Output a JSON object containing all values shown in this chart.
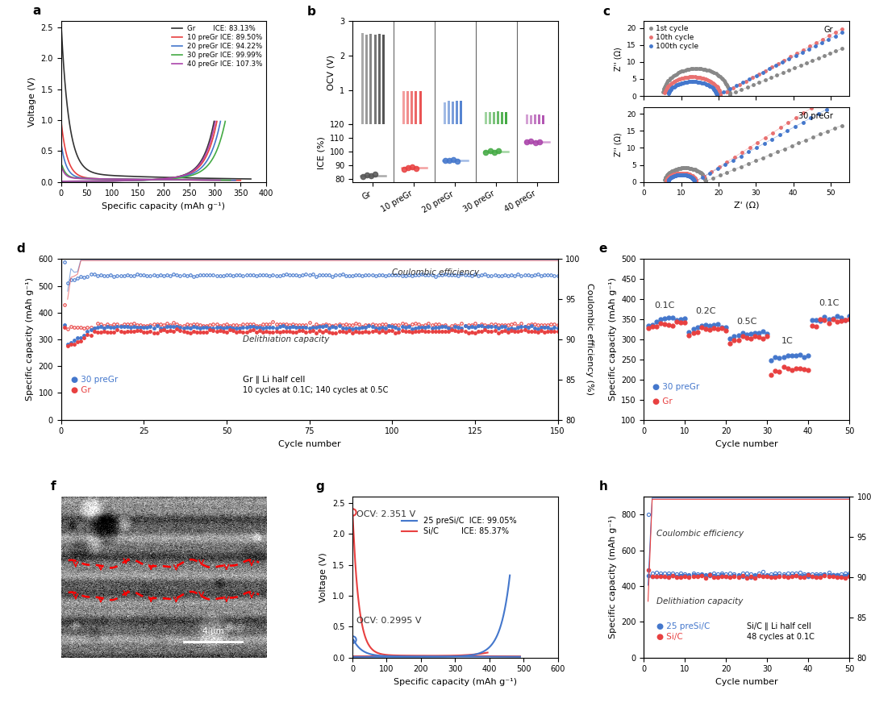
{
  "panel_a": {
    "xlabel": "Specific capacity (mAh g⁻¹)",
    "ylabel": "Voltage (V)",
    "xlim": [
      0,
      400
    ],
    "ylim": [
      0,
      2.6
    ],
    "lines": [
      {
        "label": "Gr        ICE: 83.13%",
        "color": "#333333"
      },
      {
        "label": "10 preGr ICE: 89.50%",
        "color": "#e84040"
      },
      {
        "label": "20 preGr ICE: 94.22%",
        "color": "#4477cc"
      },
      {
        "label": "30 preGr ICE: 99.99%",
        "color": "#44aa44"
      },
      {
        "label": "40 preGr ICE: 107.3%",
        "color": "#aa44aa"
      }
    ]
  },
  "panel_b": {
    "categories": [
      "Gr",
      "10 preGr",
      "20 preGr",
      "30 preGr",
      "40 preGr"
    ],
    "ocv_values": [
      [
        2.65,
        2.62,
        2.63,
        2.61,
        2.64,
        2.6
      ],
      [
        0.97,
        0.98,
        0.96,
        0.97,
        0.97
      ],
      [
        0.65,
        0.68,
        0.67,
        0.7,
        0.68
      ],
      [
        0.35,
        0.37,
        0.36,
        0.38,
        0.36,
        0.37
      ],
      [
        0.28,
        0.27,
        0.29,
        0.28,
        0.27
      ]
    ],
    "ice_values": [
      [
        82.0,
        83.0,
        82.5,
        83.5
      ],
      [
        87.5,
        88.5,
        89.0,
        88.0
      ],
      [
        93.5,
        94.0,
        94.5,
        93.0
      ],
      [
        99.5,
        100.5,
        99.8,
        101.0
      ],
      [
        107.0,
        108.0,
        106.5,
        107.5
      ]
    ],
    "colors": [
      "#555555",
      "#e84040",
      "#4477cc",
      "#44aa44",
      "#aa44aa"
    ]
  },
  "panel_c": {
    "xlabel": "Z' (Ω)",
    "ylabel": "Z'' (Ω)",
    "legend": [
      "1st cycle",
      "10th cycle",
      "100th cycle"
    ],
    "colors": [
      "#888888",
      "#e87070",
      "#4477cc"
    ],
    "xlim": [
      0,
      55
    ],
    "ylim": [
      0,
      22
    ]
  },
  "panel_d": {
    "xlabel": "Cycle number",
    "ylabel_left": "Specific capacity (mAh g⁻¹)",
    "ylabel_right": "Coulombic efficiency (%)",
    "xlim": [
      0,
      150
    ],
    "ylim_left": [
      0,
      600
    ],
    "ylim_right": [
      80,
      100
    ]
  },
  "panel_e": {
    "xlabel": "Cycle number",
    "ylabel": "Specific capacity (mAh g⁻¹)",
    "xlim": [
      0,
      50
    ],
    "ylim": [
      100,
      500
    ],
    "rate_labels": [
      "0.1C",
      "0.2C",
      "0.5C",
      "1C",
      "0.1C"
    ],
    "rate_x": [
      5,
      15,
      25,
      35,
      45
    ],
    "rate_y": [
      380,
      365,
      330,
      290,
      375
    ]
  },
  "panel_g": {
    "xlabel": "Specific capacity (mAh g⁻¹)",
    "ylabel": "Voltage (V)",
    "xlim": [
      0,
      600
    ],
    "ylim": [
      0,
      2.6
    ],
    "colors": [
      "#e84040",
      "#4477cc"
    ]
  },
  "panel_h": {
    "xlabel": "Cycle number",
    "ylabel_left": "Specific capacity (mAh g⁻¹)",
    "ylabel_right": "Coulombic efficiency (%)",
    "xlim": [
      0,
      50
    ],
    "ylim_left": [
      0,
      900
    ],
    "ylim_right": [
      80,
      100
    ]
  }
}
